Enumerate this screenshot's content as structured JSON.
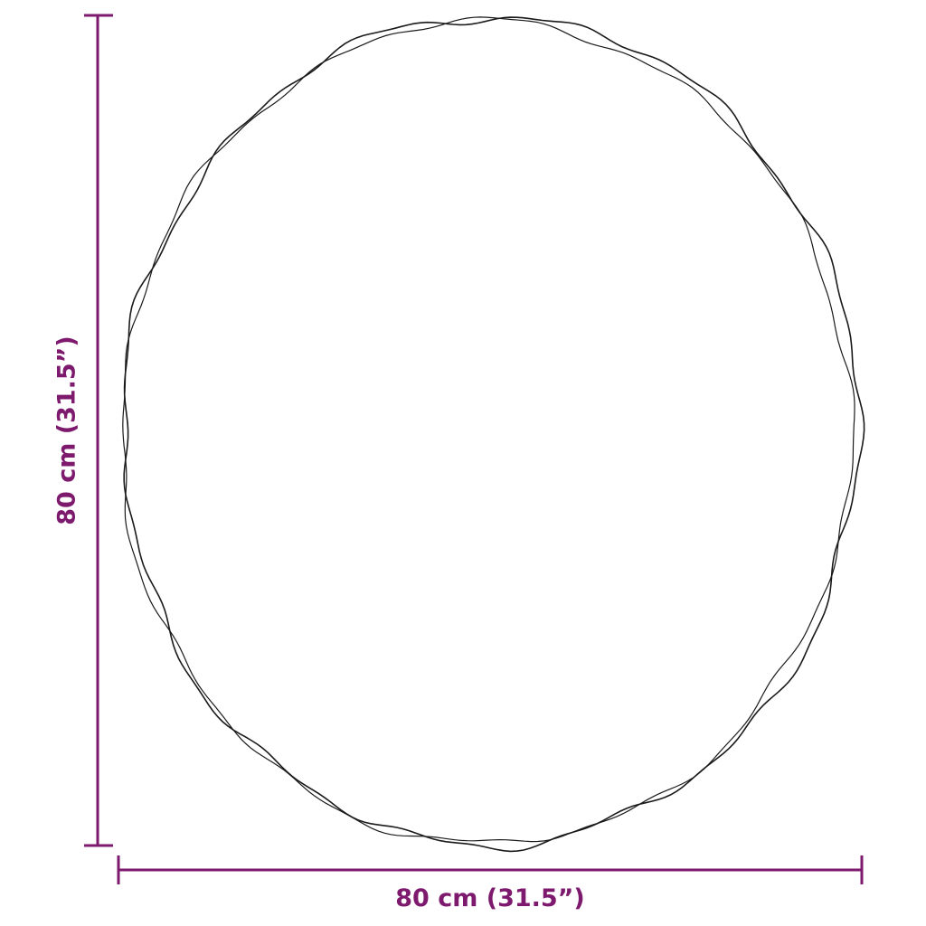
{
  "dimensions": {
    "width_label": "80 cm (31.5”)",
    "height_label": "80 cm (31.5”)"
  },
  "colors": {
    "dimension_line": "#7d1a6e",
    "outline": "#1a1a1a"
  }
}
